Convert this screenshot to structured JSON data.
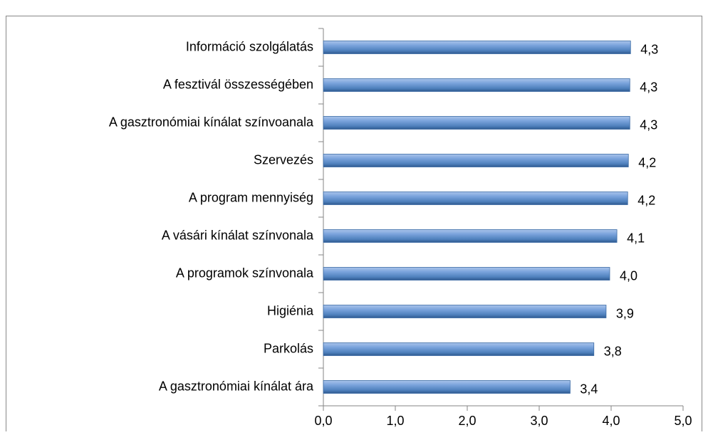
{
  "chart_data": {
    "type": "barh",
    "categories": [
      "Információ szolgálatás",
      "A fesztivál összességében",
      "A gasztronómiai kínálat színvoanala",
      "Szervezés",
      "A program mennyiség",
      "A vásári kínálat színvonala",
      "A programok színvonala",
      "Higiénia",
      "Parkolás",
      "A gasztronómiai kínálat ára"
    ],
    "values": [
      4.27,
      4.26,
      4.26,
      4.24,
      4.23,
      4.08,
      3.98,
      3.93,
      3.76,
      3.43
    ],
    "value_labels": [
      "4,3",
      "4,3",
      "4,3",
      "4,2",
      "4,2",
      "4,1",
      "4,0",
      "3,9",
      "3,8",
      "3,4"
    ],
    "color": "#4f81bd",
    "xlim": [
      0,
      5
    ],
    "xticks": [
      {
        "value": 0,
        "label": "0,0"
      },
      {
        "value": 1,
        "label": "1,0"
      },
      {
        "value": 2,
        "label": "2,0"
      },
      {
        "value": 3,
        "label": "3,0"
      },
      {
        "value": 4,
        "label": "4,0"
      },
      {
        "value": 5,
        "label": "5,0"
      }
    ],
    "grid": false
  }
}
